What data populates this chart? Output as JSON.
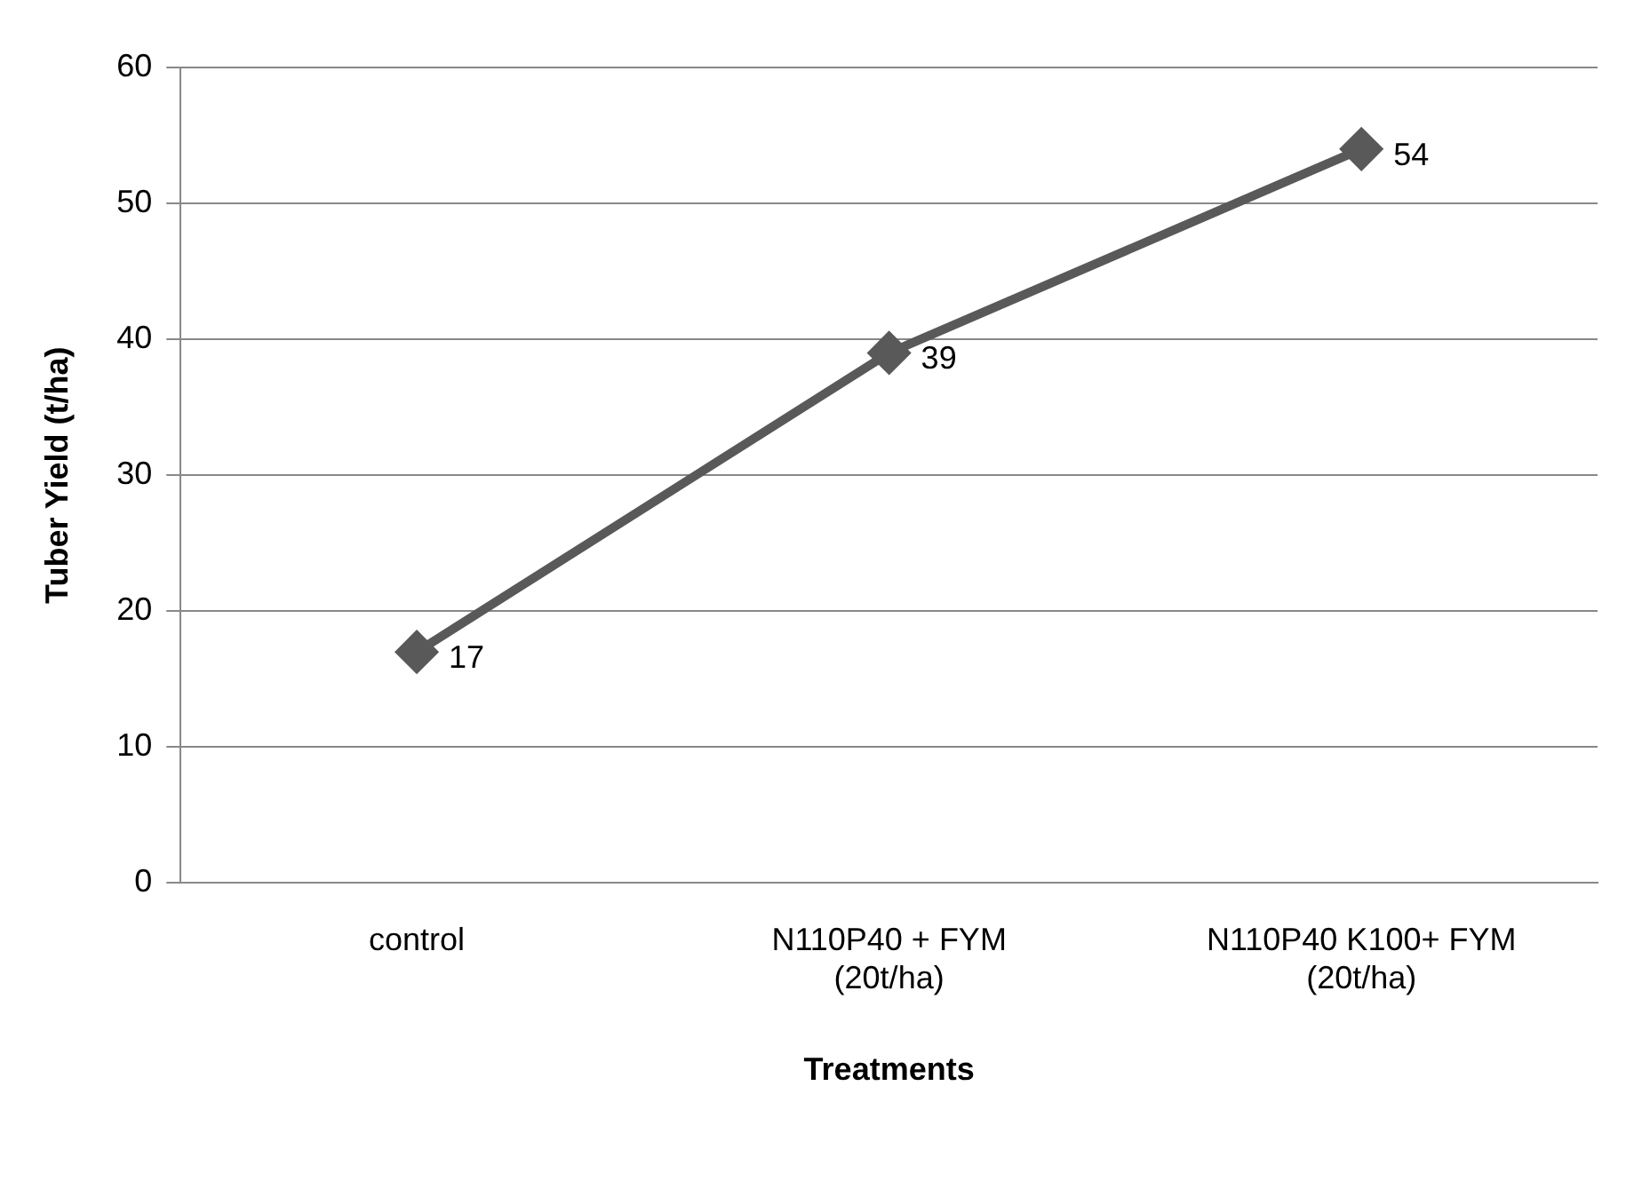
{
  "chart_data": {
    "type": "line",
    "xlabel": "Treatments",
    "ylabel": "Tuber Yield (t/ha)",
    "categories": [
      "control",
      "N110P40 + FYM\n(20t/ha)",
      "N110P40 K100+ FYM\n(20t/ha)"
    ],
    "series": [
      {
        "color": "#595959",
        "values": [
          17,
          39,
          54
        ]
      }
    ],
    "ylim": [
      0,
      60
    ],
    "yticks": [
      0,
      10,
      20,
      30,
      40,
      50,
      60
    ],
    "grid": "y",
    "legend": false,
    "marker": "diamond",
    "line_style": "solid",
    "data_labels": true
  }
}
